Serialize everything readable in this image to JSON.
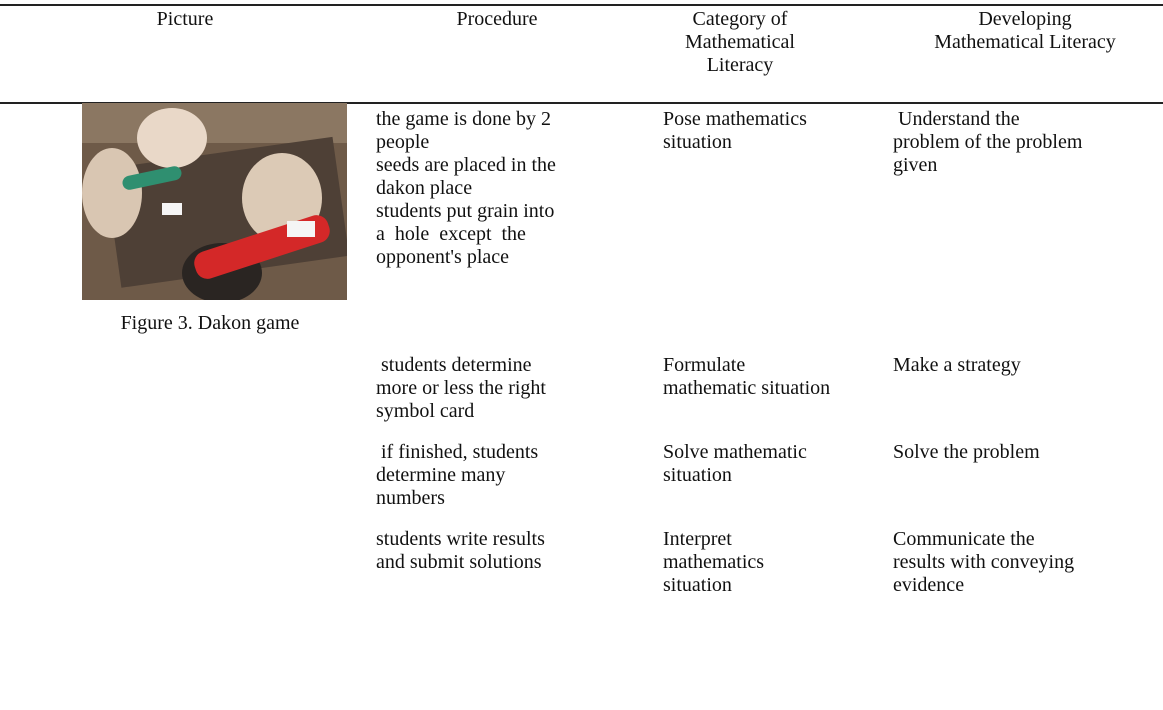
{
  "table": {
    "header": [
      "Picture",
      "Procedure",
      [
        "Category of",
        "Mathematical",
        "Literacy"
      ],
      [
        "Developing",
        "Mathematical Literacy"
      ]
    ],
    "figure_caption": "Figure 3. Dakon game",
    "rows": [
      {
        "procedure": [
          "the game is done by 2",
          "people",
          "seeds are placed in the",
          "dakon place",
          "students put grain into",
          "a  hole  except  the",
          "opponent's place"
        ],
        "category": [
          "Pose mathematics",
          "situation"
        ],
        "developing": [
          " Understand the",
          "problem of the problem",
          "given"
        ]
      },
      {
        "procedure": [
          " students determine",
          "more or less the right",
          "symbol card"
        ],
        "category": [
          "Formulate",
          "mathematic situation"
        ],
        "developing": [
          "Make a strategy"
        ]
      },
      {
        "procedure": [
          " if finished, students",
          "determine many",
          "numbers"
        ],
        "category": [
          "Solve mathematic",
          "situation"
        ],
        "developing": [
          "Solve the problem"
        ]
      },
      {
        "procedure": [
          "students write results",
          "and submit solutions"
        ],
        "category": [
          "Interpret",
          "mathematics",
          "situation"
        ],
        "developing": [
          "Communicate the",
          "results with conveying",
          "evidence"
        ]
      }
    ]
  }
}
